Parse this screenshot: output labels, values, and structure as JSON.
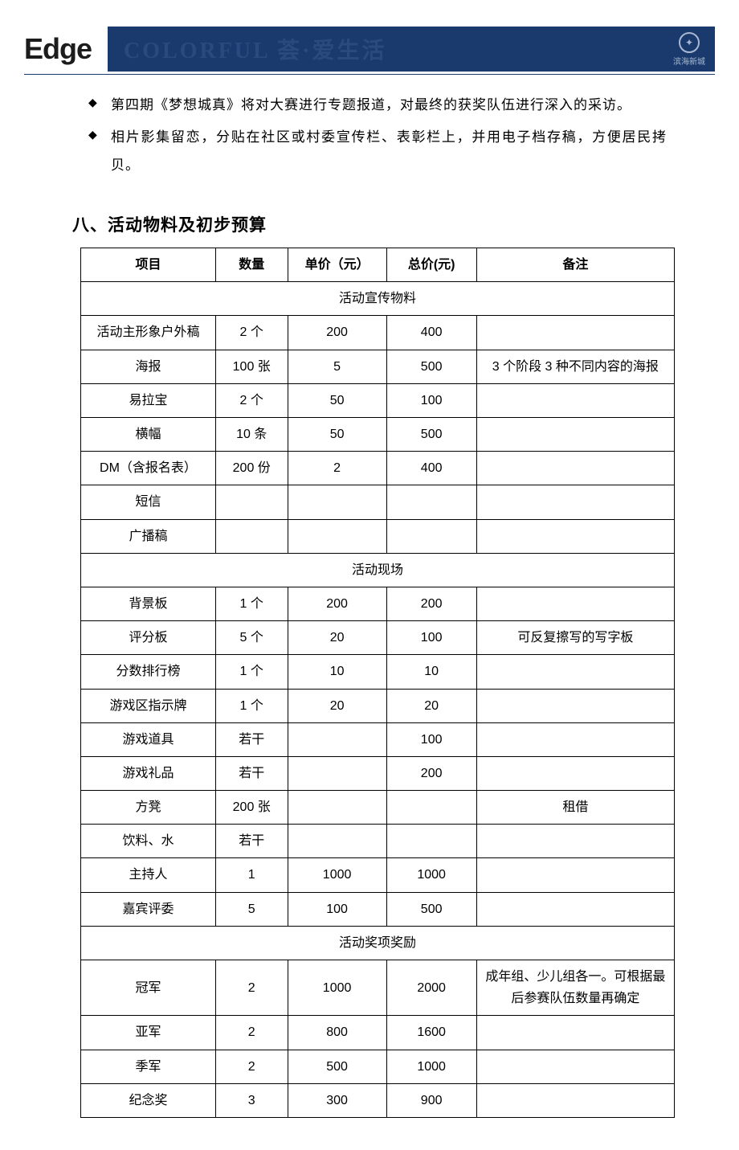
{
  "header": {
    "logo": "Edge",
    "banner_text": "COLORFUL 荟·爱生活",
    "badge_text": "滨海新城"
  },
  "bullets": [
    "第四期《梦想城真》将对大赛进行专题报道，对最终的获奖队伍进行深入的采访。",
    "相片影集留恋，分贴在社区或村委宣传栏、表彰栏上，并用电子档存稿，方便居民拷贝。"
  ],
  "section_title": "八、活动物料及初步预算",
  "table": {
    "headers": [
      "项目",
      "数量",
      "单价（元）",
      "总价(元)",
      "备注"
    ],
    "col_widths": [
      "150px",
      "80px",
      "110px",
      "100px",
      "220px"
    ],
    "sections": [
      {
        "title": "活动宣传物料",
        "rows": [
          [
            "活动主形象户外稿",
            "2 个",
            "200",
            "400",
            ""
          ],
          [
            "海报",
            "100 张",
            "5",
            "500",
            "3 个阶段 3 种不同内容的海报"
          ],
          [
            "易拉宝",
            "2 个",
            "50",
            "100",
            ""
          ],
          [
            "横幅",
            "10 条",
            "50",
            "500",
            ""
          ],
          [
            "DM（含报名表）",
            "200 份",
            "2",
            "400",
            ""
          ],
          [
            "短信",
            "",
            "",
            "",
            ""
          ],
          [
            "广播稿",
            "",
            "",
            "",
            ""
          ]
        ]
      },
      {
        "title": "活动现场",
        "rows": [
          [
            "背景板",
            "1 个",
            "200",
            "200",
            ""
          ],
          [
            "评分板",
            "5 个",
            "20",
            "100",
            "可反复擦写的写字板"
          ],
          [
            "分数排行榜",
            "1 个",
            "10",
            "10",
            ""
          ],
          [
            "游戏区指示牌",
            "1 个",
            "20",
            "20",
            ""
          ],
          [
            "游戏道具",
            "若干",
            "",
            "100",
            ""
          ],
          [
            "游戏礼品",
            "若干",
            "",
            "200",
            ""
          ],
          [
            "方凳",
            "200 张",
            "",
            "",
            "租借"
          ],
          [
            "饮料、水",
            "若干",
            "",
            "",
            ""
          ],
          [
            "主持人",
            "1",
            "1000",
            "1000",
            ""
          ],
          [
            "嘉宾评委",
            "5",
            "100",
            "500",
            ""
          ]
        ]
      },
      {
        "title": "活动奖项奖励",
        "rows": [
          [
            "冠军",
            "2",
            "1000",
            "2000",
            "成年组、少儿组各一。可根据最后参赛队伍数量再确定"
          ],
          [
            "亚军",
            "2",
            "800",
            "1600",
            ""
          ],
          [
            "季军",
            "2",
            "500",
            "1000",
            ""
          ],
          [
            "纪念奖",
            "3",
            "300",
            "900",
            ""
          ]
        ]
      }
    ]
  }
}
